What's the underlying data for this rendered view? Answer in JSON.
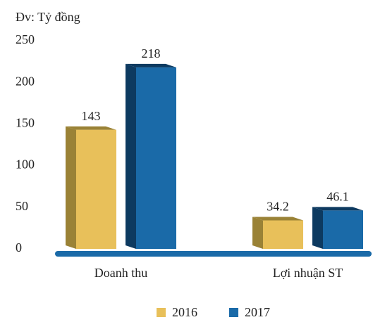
{
  "chart_data": {
    "type": "bar3d",
    "unit_label": "Đv: Tỷ đồng",
    "categories": [
      "Doanh thu",
      "Lợi nhuận ST"
    ],
    "series": [
      {
        "name": "2016",
        "color": "#e8c05a",
        "side_color": "#9a8236",
        "values": [
          143,
          34.2
        ]
      },
      {
        "name": "2017",
        "color": "#1a6aa8",
        "side_color": "#0d3a60",
        "values": [
          218,
          46.1
        ]
      }
    ],
    "ylim": [
      0,
      250
    ],
    "yticks": [
      0,
      50,
      100,
      150,
      200,
      250
    ],
    "grid": false,
    "legend": "bottom"
  }
}
